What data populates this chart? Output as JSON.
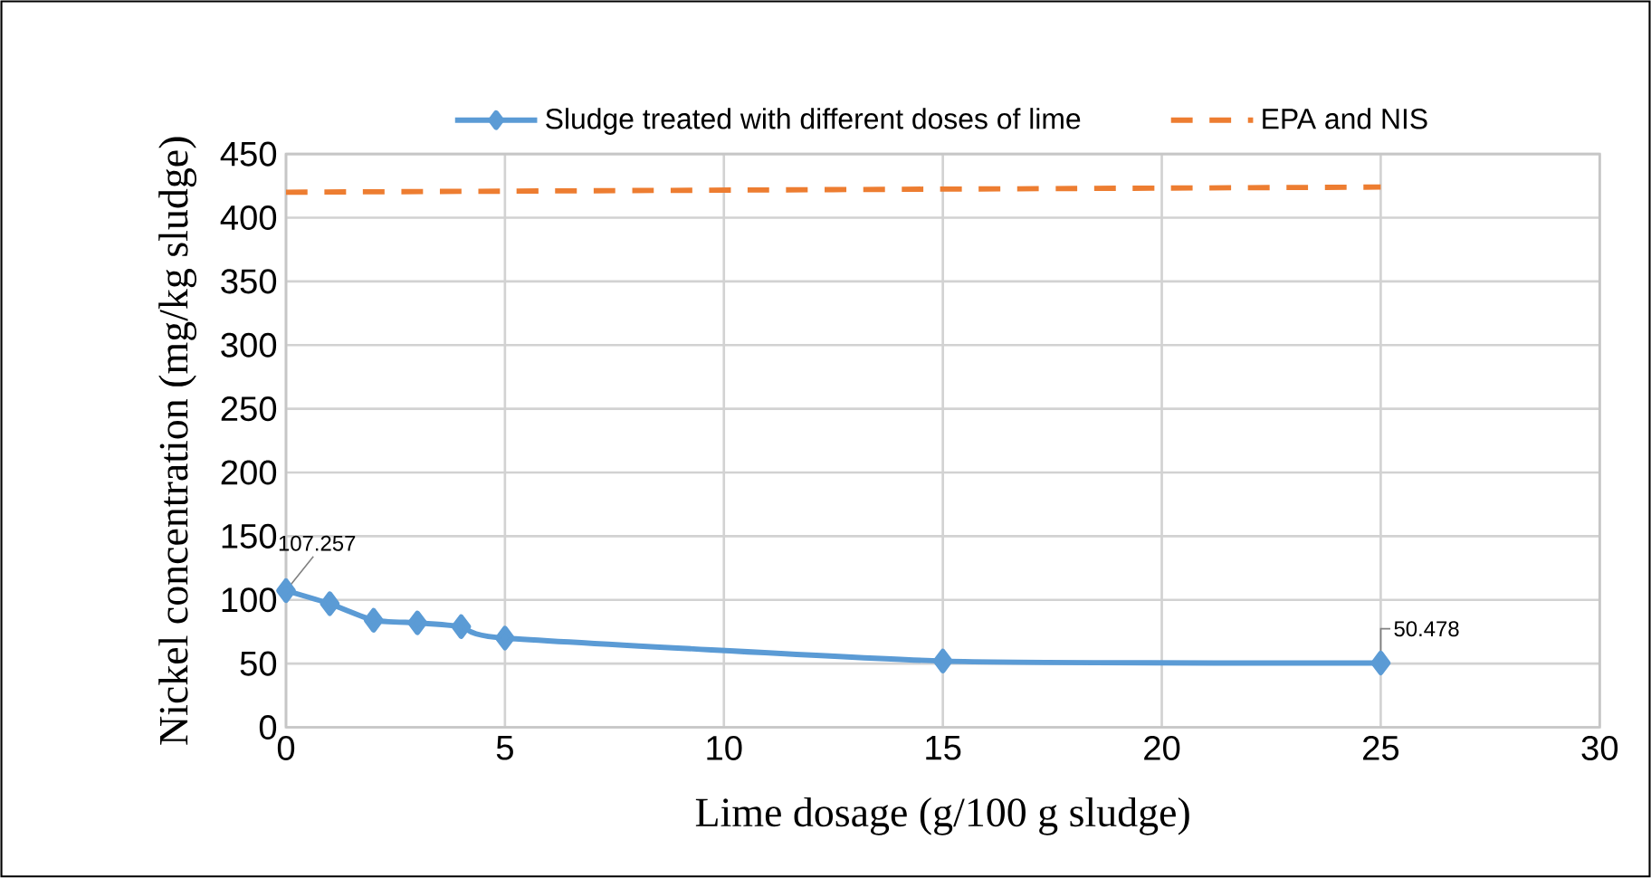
{
  "chart_data": {
    "type": "line",
    "xlabel": "Lime dosage (g/100 g sludge)",
    "ylabel": "Nickel concentration (mg/kg sludge)",
    "xlim": [
      0,
      30
    ],
    "xticks": [
      0,
      5,
      10,
      15,
      20,
      25,
      30
    ],
    "ylim": [
      0,
      450
    ],
    "yticks": [
      0,
      50,
      100,
      150,
      200,
      250,
      300,
      350,
      400,
      450
    ],
    "grid": true,
    "legend": "top",
    "series": [
      {
        "name": "Sludge treated with different doses of lime",
        "color": "#5b9bd5",
        "marker": "diamond",
        "line_style": "solid",
        "x": [
          0,
          1,
          2,
          3,
          4,
          5,
          15,
          25
        ],
        "values": [
          107.257,
          97,
          84,
          82,
          79,
          70,
          52,
          50.478
        ],
        "value_labels": [
          "107.257",
          null,
          null,
          null,
          null,
          null,
          null,
          "50.478"
        ]
      },
      {
        "name": "EPA and NIS",
        "color": "#ed7d31",
        "marker": "none",
        "line_style": "dashed",
        "x": [
          0,
          25
        ],
        "values": [
          420,
          424
        ]
      }
    ]
  }
}
